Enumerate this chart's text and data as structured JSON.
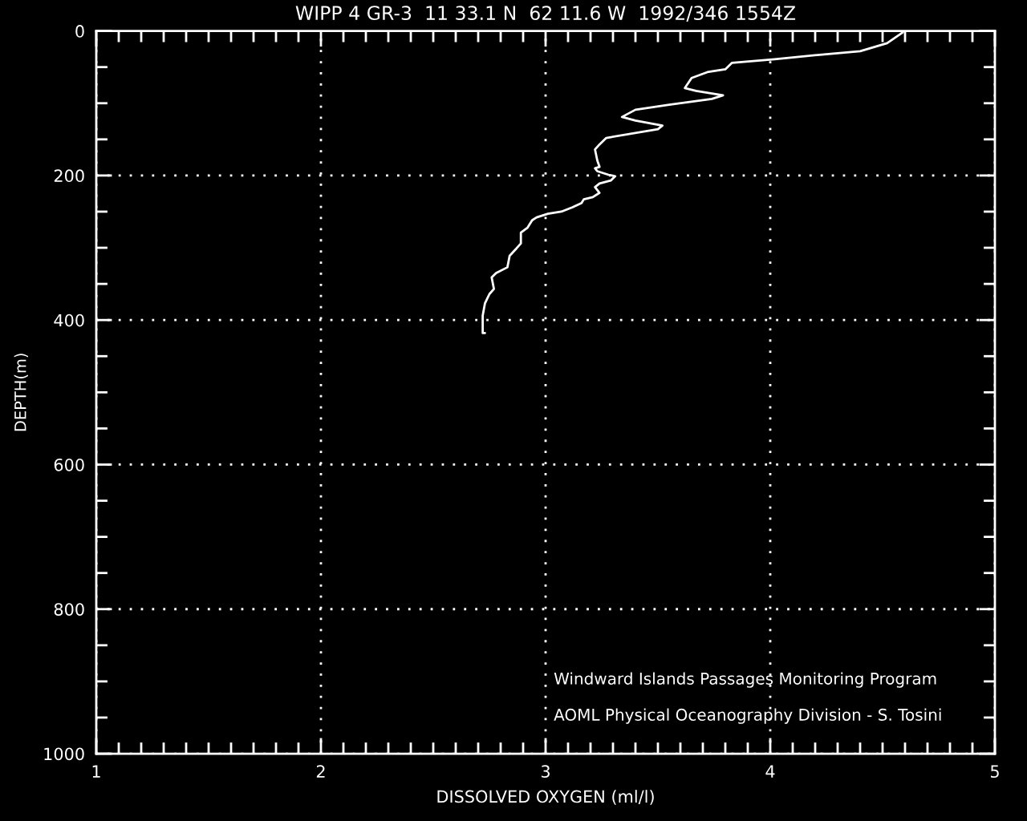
{
  "chart_data": {
    "type": "line",
    "title": "WIPP 4 GR-3  11 33.1 N  62 11.6 W  1992/346 1554Z",
    "xlabel": "DISSOLVED OXYGEN (ml/l)",
    "ylabel": "DEPTH(m)",
    "annotations": [
      "Windward Islands Passages Monitoring Program",
      "AOML Physical Oceanography Division - S. Tosini"
    ],
    "xlim": [
      1,
      5
    ],
    "ylim": [
      1000,
      0
    ],
    "xticks": [
      1,
      {
        "value": 1.1,
        "label": null
      },
      {
        "value": 1.2,
        "label": null
      },
      {
        "value": 1.3,
        "label": null
      },
      {
        "value": 1.4,
        "label": null
      },
      {
        "value": 1.5,
        "label": null
      },
      {
        "value": 1.6,
        "label": null
      },
      {
        "value": 1.7,
        "label": null
      },
      {
        "value": 1.8,
        "label": null
      },
      {
        "value": 1.9,
        "label": null
      },
      2,
      {
        "value": 2.1,
        "label": null
      },
      {
        "value": 2.2,
        "label": null
      },
      {
        "value": 2.3,
        "label": null
      },
      {
        "value": 2.4,
        "label": null
      },
      {
        "value": 2.5,
        "label": null
      },
      {
        "value": 2.6,
        "label": null
      },
      {
        "value": 2.7,
        "label": null
      },
      {
        "value": 2.8,
        "label": null
      },
      {
        "value": 2.9,
        "label": null
      },
      3,
      {
        "value": 3.1,
        "label": null
      },
      {
        "value": 3.2,
        "label": null
      },
      {
        "value": 3.3,
        "label": null
      },
      {
        "value": 3.4,
        "label": null
      },
      {
        "value": 3.5,
        "label": null
      },
      {
        "value": 3.6,
        "label": null
      },
      {
        "value": 3.7,
        "label": null
      },
      {
        "value": 3.8,
        "label": null
      },
      {
        "value": 3.9,
        "label": null
      },
      4,
      {
        "value": 4.1,
        "label": null
      },
      {
        "value": 4.2,
        "label": null
      },
      {
        "value": 4.3,
        "label": null
      },
      {
        "value": 4.4,
        "label": null
      },
      {
        "value": 4.5,
        "label": null
      },
      {
        "value": 4.6,
        "label": null
      },
      {
        "value": 4.7,
        "label": null
      },
      {
        "value": 4.8,
        "label": null
      },
      {
        "value": 4.9,
        "label": null
      },
      5
    ],
    "yticks": [
      0,
      {
        "value": 50,
        "label": null
      },
      {
        "value": 100,
        "label": null
      },
      {
        "value": 150,
        "label": null
      },
      200,
      {
        "value": 250,
        "label": null
      },
      {
        "value": 300,
        "label": null
      },
      {
        "value": 350,
        "label": null
      },
      400,
      {
        "value": 450,
        "label": null
      },
      {
        "value": 500,
        "label": null
      },
      {
        "value": 550,
        "label": null
      },
      600,
      {
        "value": 650,
        "label": null
      },
      {
        "value": 700,
        "label": null
      },
      {
        "value": 750,
        "label": null
      },
      800,
      {
        "value": 850,
        "label": null
      },
      {
        "value": 900,
        "label": null
      },
      {
        "value": 950,
        "label": null
      },
      1000
    ],
    "grid": true,
    "line_style": "solid",
    "series": [
      {
        "color": "#ffffff",
        "x": [
          4.59,
          4.52,
          4.4,
          4.22,
          4.02,
          3.83,
          3.8,
          3.72,
          3.65,
          3.62,
          3.67,
          3.79,
          3.74,
          3.55,
          3.4,
          3.34,
          3.4,
          3.52,
          3.5,
          3.27,
          3.24,
          3.22,
          3.23,
          3.24,
          3.22,
          3.23,
          3.28,
          3.31,
          3.29,
          3.24,
          3.22,
          3.24,
          3.21,
          3.17,
          3.16,
          3.12,
          3.07,
          3.01,
          2.96,
          2.94,
          2.92,
          2.89,
          2.89,
          2.87,
          2.84,
          2.83,
          2.78,
          2.76,
          2.77,
          2.75,
          2.73,
          2.72,
          2.72,
          2.72,
          2.73
        ],
        "values": [
          2,
          17,
          28,
          33,
          39,
          44,
          53,
          57,
          65,
          79,
          83,
          89,
          94,
          102,
          109,
          119,
          124,
          131,
          136,
          148,
          157,
          164,
          179,
          188,
          190,
          194,
          199,
          201,
          207,
          211,
          216,
          224,
          230,
          233,
          238,
          244,
          250,
          253,
          258,
          262,
          272,
          279,
          294,
          301,
          311,
          327,
          335,
          341,
          357,
          364,
          377,
          394,
          405,
          418,
          418
        ]
      }
    ]
  }
}
